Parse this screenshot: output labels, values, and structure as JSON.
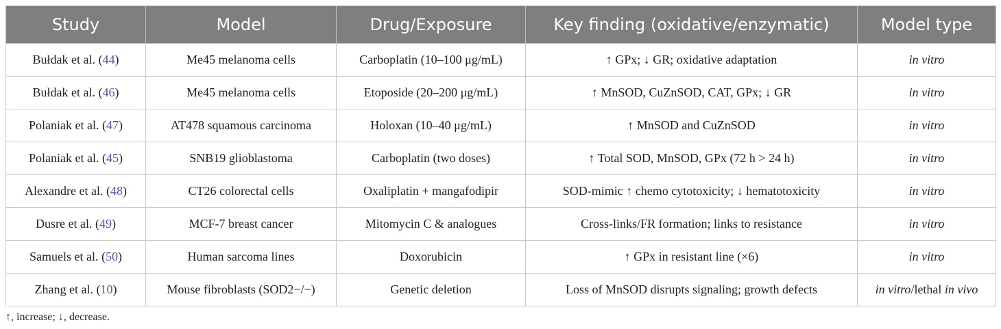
{
  "table": {
    "headers": [
      "Study",
      "Model",
      "Drug/Exposure",
      "Key finding (oxidative/enzymatic)",
      "Model type"
    ],
    "rows": [
      {
        "study": [
          "Bułdak et al. (",
          "44",
          ")"
        ],
        "model": "Me45 melanoma cells",
        "drug": "Carboplatin (10–100 μg/mL)",
        "finding": "↑ GPx; ↓ GR; oxidative adaptation",
        "type": [
          {
            "text": "in vitro",
            "italic": true
          }
        ]
      },
      {
        "study": [
          "Bułdak et al. (",
          "46",
          ")"
        ],
        "model": "Me45 melanoma cells",
        "drug": "Etoposide (20–200 μg/mL)",
        "finding": "↑ MnSOD, CuZnSOD, CAT, GPx; ↓ GR",
        "type": [
          {
            "text": "in vitro",
            "italic": true
          }
        ]
      },
      {
        "study": [
          "Polaniak et al. (",
          "47",
          ")"
        ],
        "model": "AT478 squamous carcinoma",
        "drug": "Holoxan (10–40 μg/mL)",
        "finding": "↑ MnSOD and CuZnSOD",
        "type": [
          {
            "text": "in vitro",
            "italic": true
          }
        ]
      },
      {
        "study": [
          "Polaniak et al. (",
          "45",
          ")"
        ],
        "model": "SNB19 glioblastoma",
        "drug": "Carboplatin (two doses)",
        "finding": "↑ Total SOD, MnSOD, GPx (72 h > 24 h)",
        "type": [
          {
            "text": "in vitro",
            "italic": true
          }
        ]
      },
      {
        "study": [
          "Alexandre et al. (",
          "48",
          ")"
        ],
        "model": "CT26 colorectal cells",
        "drug": "Oxaliplatin + mangafodipir",
        "finding": "SOD-mimic ↑ chemo cytotoxicity; ↓ hematotoxicity",
        "type": [
          {
            "text": "in vitro",
            "italic": true
          }
        ]
      },
      {
        "study": [
          "Dusre et al. (",
          "49",
          ")"
        ],
        "model": "MCF-7 breast cancer",
        "drug": "Mitomycin C & analogues",
        "finding": "Cross-links/FR formation; links to resistance",
        "type": [
          {
            "text": "in vitro",
            "italic": true
          }
        ]
      },
      {
        "study": [
          "Samuels et al. (",
          "50",
          ")"
        ],
        "model": "Human sarcoma lines",
        "drug": "Doxorubicin",
        "finding": "↑ GPx in resistant line (×6)",
        "type": [
          {
            "text": "in vitro",
            "italic": true
          }
        ]
      },
      {
        "study": [
          "Zhang et al. (",
          "10",
          ")"
        ],
        "model": "Mouse fibroblasts (SOD2−/−)",
        "drug": "Genetic deletion",
        "finding": "Loss of MnSOD disrupts signaling; growth defects",
        "type": [
          {
            "text": "in vitro",
            "italic": true
          },
          {
            "text": "/lethal ",
            "italic": false
          },
          {
            "text": "in vivo",
            "italic": true
          }
        ]
      }
    ]
  },
  "footnote": "↑, increase; ↓, decrease."
}
